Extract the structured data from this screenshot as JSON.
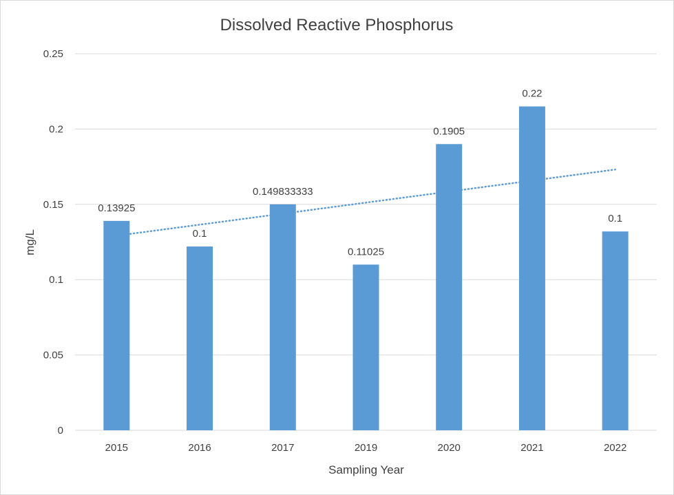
{
  "chart_data": {
    "type": "bar",
    "title": "Dissolved Reactive Phosphorus",
    "xlabel": "Sampling Year",
    "ylabel": "mg/L",
    "categories": [
      "2015",
      "2016",
      "2017",
      "2019",
      "2020",
      "2021",
      "2022"
    ],
    "series": [
      {
        "values": [
          0.139,
          0.122,
          0.15,
          0.11,
          0.19,
          0.215,
          0.132
        ],
        "data_labels": [
          "0.13925",
          "0.1",
          "0.149833333",
          "0.11025",
          "0.1905",
          "0.22",
          "0.1"
        ],
        "color": "#5b9bd5"
      }
    ],
    "trendline": {
      "type": "linear",
      "style": "dotted",
      "color": "#5b9bd5"
    },
    "ylim": [
      0,
      0.25
    ],
    "yticks": [
      0,
      0.05,
      0.1,
      0.15,
      0.2,
      0.25
    ],
    "ytick_labels": [
      "0",
      "0.05",
      "0.1",
      "0.15",
      "0.2",
      "0.25"
    ],
    "grid": true,
    "legend": "none"
  }
}
